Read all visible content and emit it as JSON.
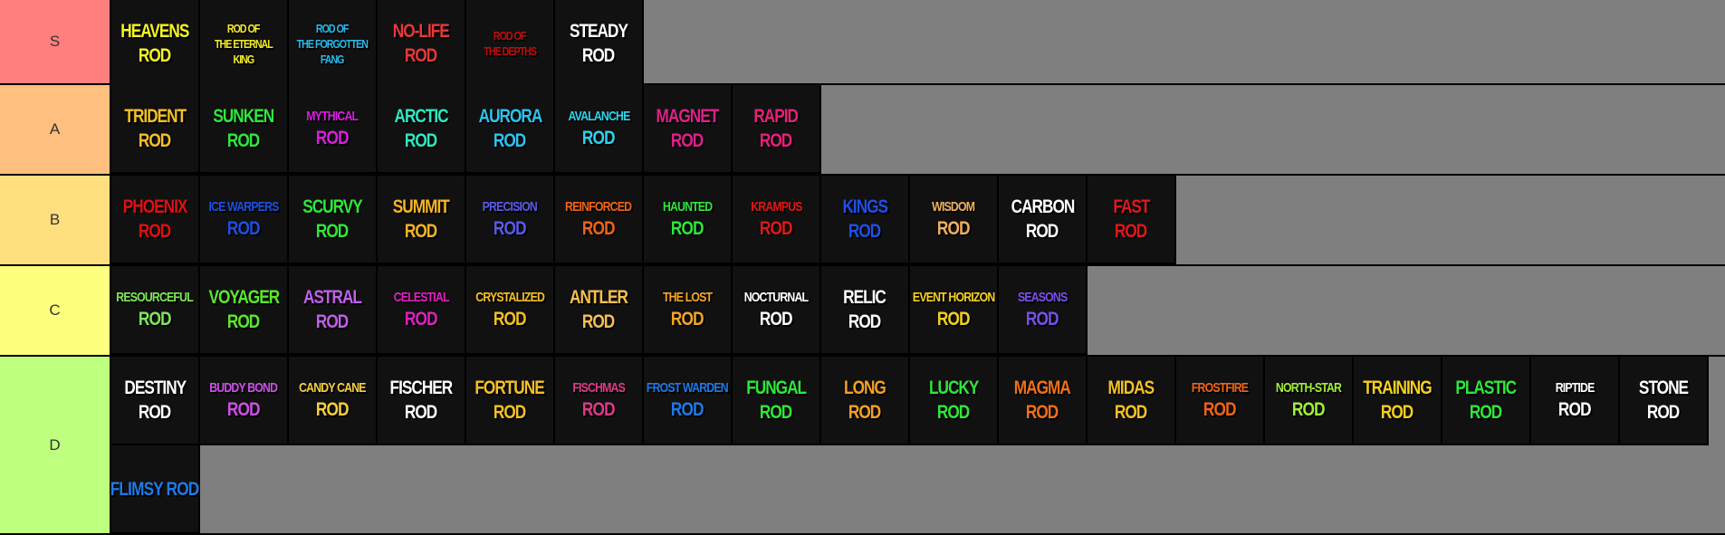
{
  "tiers": [
    {
      "label": "S",
      "color": "#ff7f7f",
      "height": 92,
      "items": [
        {
          "lines": [
            "HEAVENS",
            "ROD"
          ],
          "color": "#f5f524"
        },
        {
          "lines": [
            "ROD OF",
            "THE ETERNAL",
            "KING"
          ],
          "color": "#f2ea2a",
          "size": "tiny"
        },
        {
          "lines": [
            "ROD OF",
            "THE FORGOTTEN",
            "FANG"
          ],
          "color": "#27b8e8",
          "size": "tiny"
        },
        {
          "lines": [
            "NO-LIFE",
            "ROD"
          ],
          "color": "#e8383a"
        },
        {
          "lines": [
            "ROD OF",
            "THE DEPTHS"
          ],
          "color": "#c00d0d",
          "size": "tiny"
        },
        {
          "lines": [
            "STEADY",
            "ROD"
          ],
          "color": "#ffffff"
        }
      ]
    },
    {
      "label": "A",
      "color": "#ffbf7f",
      "height": 98,
      "items": [
        {
          "lines": [
            "TRIDENT",
            "ROD"
          ],
          "color": "#f5c026"
        },
        {
          "lines": [
            "SUNKEN",
            "ROD"
          ],
          "color": "#2ee83a"
        },
        {
          "lines": [
            "MYTHICAL",
            "ROD"
          ],
          "color": "#d91ee0",
          "size": "small"
        },
        {
          "lines": [
            "ARCTIC",
            "ROD"
          ],
          "color": "#2ee8c0"
        },
        {
          "lines": [
            "AURORA",
            "ROD"
          ],
          "color": "#2bc4ee"
        },
        {
          "lines": [
            "AVALANCHE",
            "ROD"
          ],
          "color": "#2bd4ee",
          "size": "small"
        },
        {
          "lines": [
            "MAGNET",
            "ROD"
          ],
          "color": "#e0208a"
        },
        {
          "lines": [
            "RAPID",
            "ROD"
          ],
          "color": "#e8207a"
        }
      ]
    },
    {
      "label": "B",
      "color": "#ffdf7f",
      "height": 98,
      "items": [
        {
          "lines": [
            "PHOENIX",
            "ROD"
          ],
          "color": "#e01010"
        },
        {
          "lines": [
            "ICE WARPERS",
            "ROD"
          ],
          "color": "#1e4fe0",
          "size": "small"
        },
        {
          "lines": [
            "SCURVY",
            "ROD"
          ],
          "color": "#2ee83a"
        },
        {
          "lines": [
            "SUMMIT",
            "ROD"
          ],
          "color": "#f5b526"
        },
        {
          "lines": [
            "PRECISION",
            "ROD"
          ],
          "color": "#5a5ae8",
          "size": "small"
        },
        {
          "lines": [
            "REINFORCED",
            "ROD"
          ],
          "color": "#f06418",
          "size": "small"
        },
        {
          "lines": [
            "HAUNTED",
            "ROD"
          ],
          "color": "#2ee83a",
          "size": "small"
        },
        {
          "lines": [
            "KRAMPUS",
            "ROD"
          ],
          "color": "#e01818",
          "size": "small"
        },
        {
          "lines": [
            "KINGS",
            "ROD"
          ],
          "color": "#1e4fe8"
        },
        {
          "lines": [
            "WISDOM",
            "ROD"
          ],
          "color": "#f0b060",
          "size": "small"
        },
        {
          "lines": [
            "CARBON",
            "ROD"
          ],
          "color": "#ffffff"
        },
        {
          "lines": [
            "FAST",
            "ROD"
          ],
          "color": "#e01818"
        }
      ]
    },
    {
      "label": "C",
      "color": "#ffff7f",
      "height": 98,
      "items": [
        {
          "lines": [
            "RESOURCEFUL",
            "ROD"
          ],
          "color": "#7ee85a",
          "size": "small"
        },
        {
          "lines": [
            "VOYAGER",
            "ROD"
          ],
          "color": "#5ae82e"
        },
        {
          "lines": [
            "ASTRAL",
            "ROD"
          ],
          "color": "#c060e8"
        },
        {
          "lines": [
            "CELESTIAL",
            "ROD"
          ],
          "color": "#e020c0",
          "size": "small"
        },
        {
          "lines": [
            "CRYSTALIZED",
            "ROD"
          ],
          "color": "#f5c026",
          "size": "small"
        },
        {
          "lines": [
            "ANTLER",
            "ROD"
          ],
          "color": "#f5c050"
        },
        {
          "lines": [
            "THE LOST",
            "ROD"
          ],
          "color": "#f5a526",
          "size": "small"
        },
        {
          "lines": [
            "NOCTURNAL",
            "ROD"
          ],
          "color": "#ffffff",
          "size": "small"
        },
        {
          "lines": [
            "RELIC",
            "ROD"
          ],
          "color": "#ffffff"
        },
        {
          "lines": [
            "EVENT HORIZON",
            "ROD"
          ],
          "color": "#f5d020",
          "size": "small"
        },
        {
          "lines": [
            "SEASONS",
            "ROD"
          ],
          "color": "#7a50e8",
          "size": "small"
        }
      ]
    },
    {
      "label": "D",
      "color": "#bfff7f",
      "height": 195,
      "items": [
        {
          "lines": [
            "DESTINY",
            "ROD"
          ],
          "color": "#ffffff"
        },
        {
          "lines": [
            "BUDDY BOND",
            "ROD"
          ],
          "color": "#d050e8",
          "size": "small"
        },
        {
          "lines": [
            "CANDY CANE",
            "ROD"
          ],
          "color": "#f5d040",
          "size": "small"
        },
        {
          "lines": [
            "FISCHER",
            "ROD"
          ],
          "color": "#ffffff"
        },
        {
          "lines": [
            "FORTUNE",
            "ROD"
          ],
          "color": "#f5c026"
        },
        {
          "lines": [
            "FISCHMAS",
            "ROD"
          ],
          "color": "#e03a8a",
          "size": "small"
        },
        {
          "lines": [
            "FROST WARDEN",
            "ROD"
          ],
          "color": "#1e7ae8",
          "size": "small"
        },
        {
          "lines": [
            "FUNGAL",
            "ROD"
          ],
          "color": "#2ee83a"
        },
        {
          "lines": [
            "LONG",
            "ROD"
          ],
          "color": "#f5a026"
        },
        {
          "lines": [
            "LUCKY",
            "ROD"
          ],
          "color": "#2ee83a"
        },
        {
          "lines": [
            "MAGMA",
            "ROD"
          ],
          "color": "#f07018"
        },
        {
          "lines": [
            "MIDAS",
            "ROD"
          ],
          "color": "#f5c026"
        },
        {
          "lines": [
            "FROSTFIRE",
            "ROD"
          ],
          "color": "#f06418",
          "size": "small"
        },
        {
          "lines": [
            "NORTH-STAR",
            "ROD"
          ],
          "color": "#a0f03a",
          "size": "small"
        },
        {
          "lines": [
            "TRAINING",
            "ROD"
          ],
          "color": "#f5d020"
        },
        {
          "lines": [
            "PLASTIC",
            "ROD"
          ],
          "color": "#2ee83a"
        },
        {
          "lines": [
            "RIPTIDE",
            "ROD"
          ],
          "color": "#ffffff",
          "size": "small"
        },
        {
          "lines": [
            "STONE",
            "ROD"
          ],
          "color": "#ffffff"
        },
        {
          "lines": [
            "FLIMSY ROD"
          ],
          "color": "#1e7ae8",
          "size": "small"
        }
      ]
    }
  ]
}
